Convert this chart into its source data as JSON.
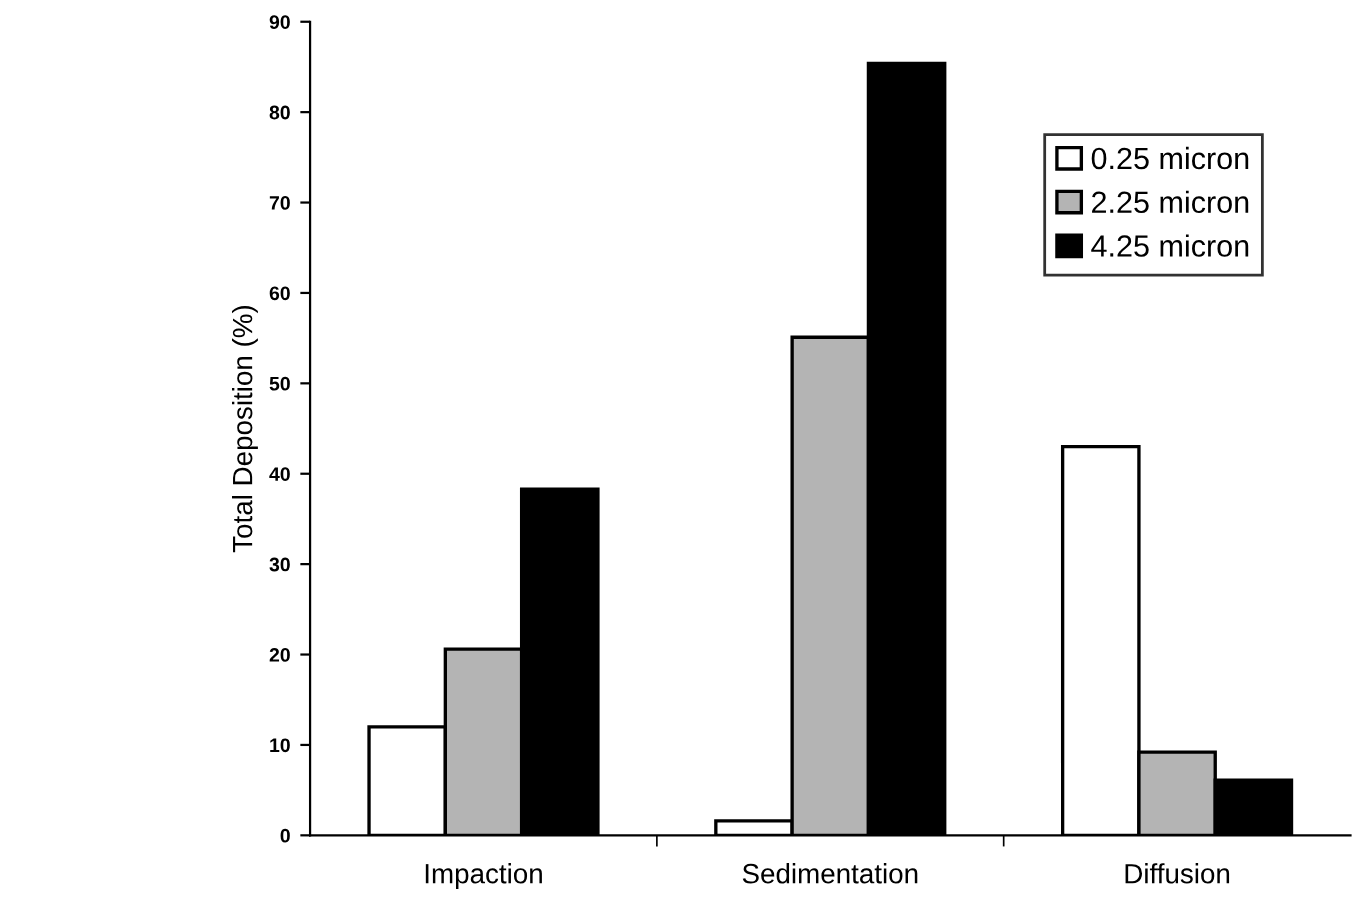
{
  "chart_data": {
    "type": "bar",
    "ylabel": "Total Deposition (%)",
    "categories": [
      "Impaction",
      "Sedimentation",
      "Diffusion"
    ],
    "series": [
      {
        "name": "0.25 micron",
        "color": "#ffffff",
        "values": [
          12.0,
          1.6,
          43.0
        ]
      },
      {
        "name": "2.25 micron",
        "color": "#b4b4b4",
        "values": [
          20.6,
          55.1,
          9.2
        ]
      },
      {
        "name": "4.25 micron",
        "color": "#000000",
        "values": [
          38.3,
          85.4,
          6.1
        ]
      }
    ],
    "ylim": [
      0,
      90
    ],
    "yticks": [
      0,
      10,
      20,
      30,
      40,
      50,
      60,
      70,
      80,
      90
    ],
    "grid": false,
    "legend": "top right"
  }
}
